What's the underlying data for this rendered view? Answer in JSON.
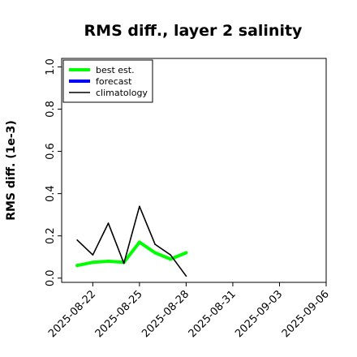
{
  "chart_data": {
    "type": "line",
    "title": "RMS diff., layer 2 salinity",
    "xlabel": "",
    "ylabel": "RMS diff. (1e-3)",
    "ylim": [
      -0.02,
      1.04
    ],
    "xlim": [
      "2025-08-20",
      "2025-09-06"
    ],
    "yticks": [
      "0.0",
      "0.2",
      "0.4",
      "0.6",
      "0.8",
      "1.0"
    ],
    "xticks": [
      "2025-08-22",
      "2025-08-25",
      "2025-08-28",
      "2025-08-31",
      "2025-09-03",
      "2025-09-06"
    ],
    "highlighted_xtick": "2025-08-28",
    "highlight_color": "#228B22",
    "grid": false,
    "legend_position": "upper left",
    "series": [
      {
        "name": "best est.",
        "color": "#00ff00",
        "x": [
          "2025-08-21",
          "2025-08-22",
          "2025-08-23",
          "2025-08-24",
          "2025-08-25",
          "2025-08-26",
          "2025-08-27",
          "2025-08-28"
        ],
        "values": [
          0.06,
          0.075,
          0.08,
          0.075,
          0.17,
          0.12,
          0.09,
          0.12
        ]
      },
      {
        "name": "forecast",
        "color": "#0000ff",
        "x": [],
        "values": []
      },
      {
        "name": "climatology",
        "color": "#000000",
        "x": [
          "2025-08-21",
          "2025-08-22",
          "2025-08-23",
          "2025-08-24",
          "2025-08-25",
          "2025-08-26",
          "2025-08-27",
          "2025-08-28"
        ],
        "values": [
          0.18,
          0.11,
          0.26,
          0.07,
          0.34,
          0.16,
          0.11,
          0.01
        ]
      }
    ]
  }
}
